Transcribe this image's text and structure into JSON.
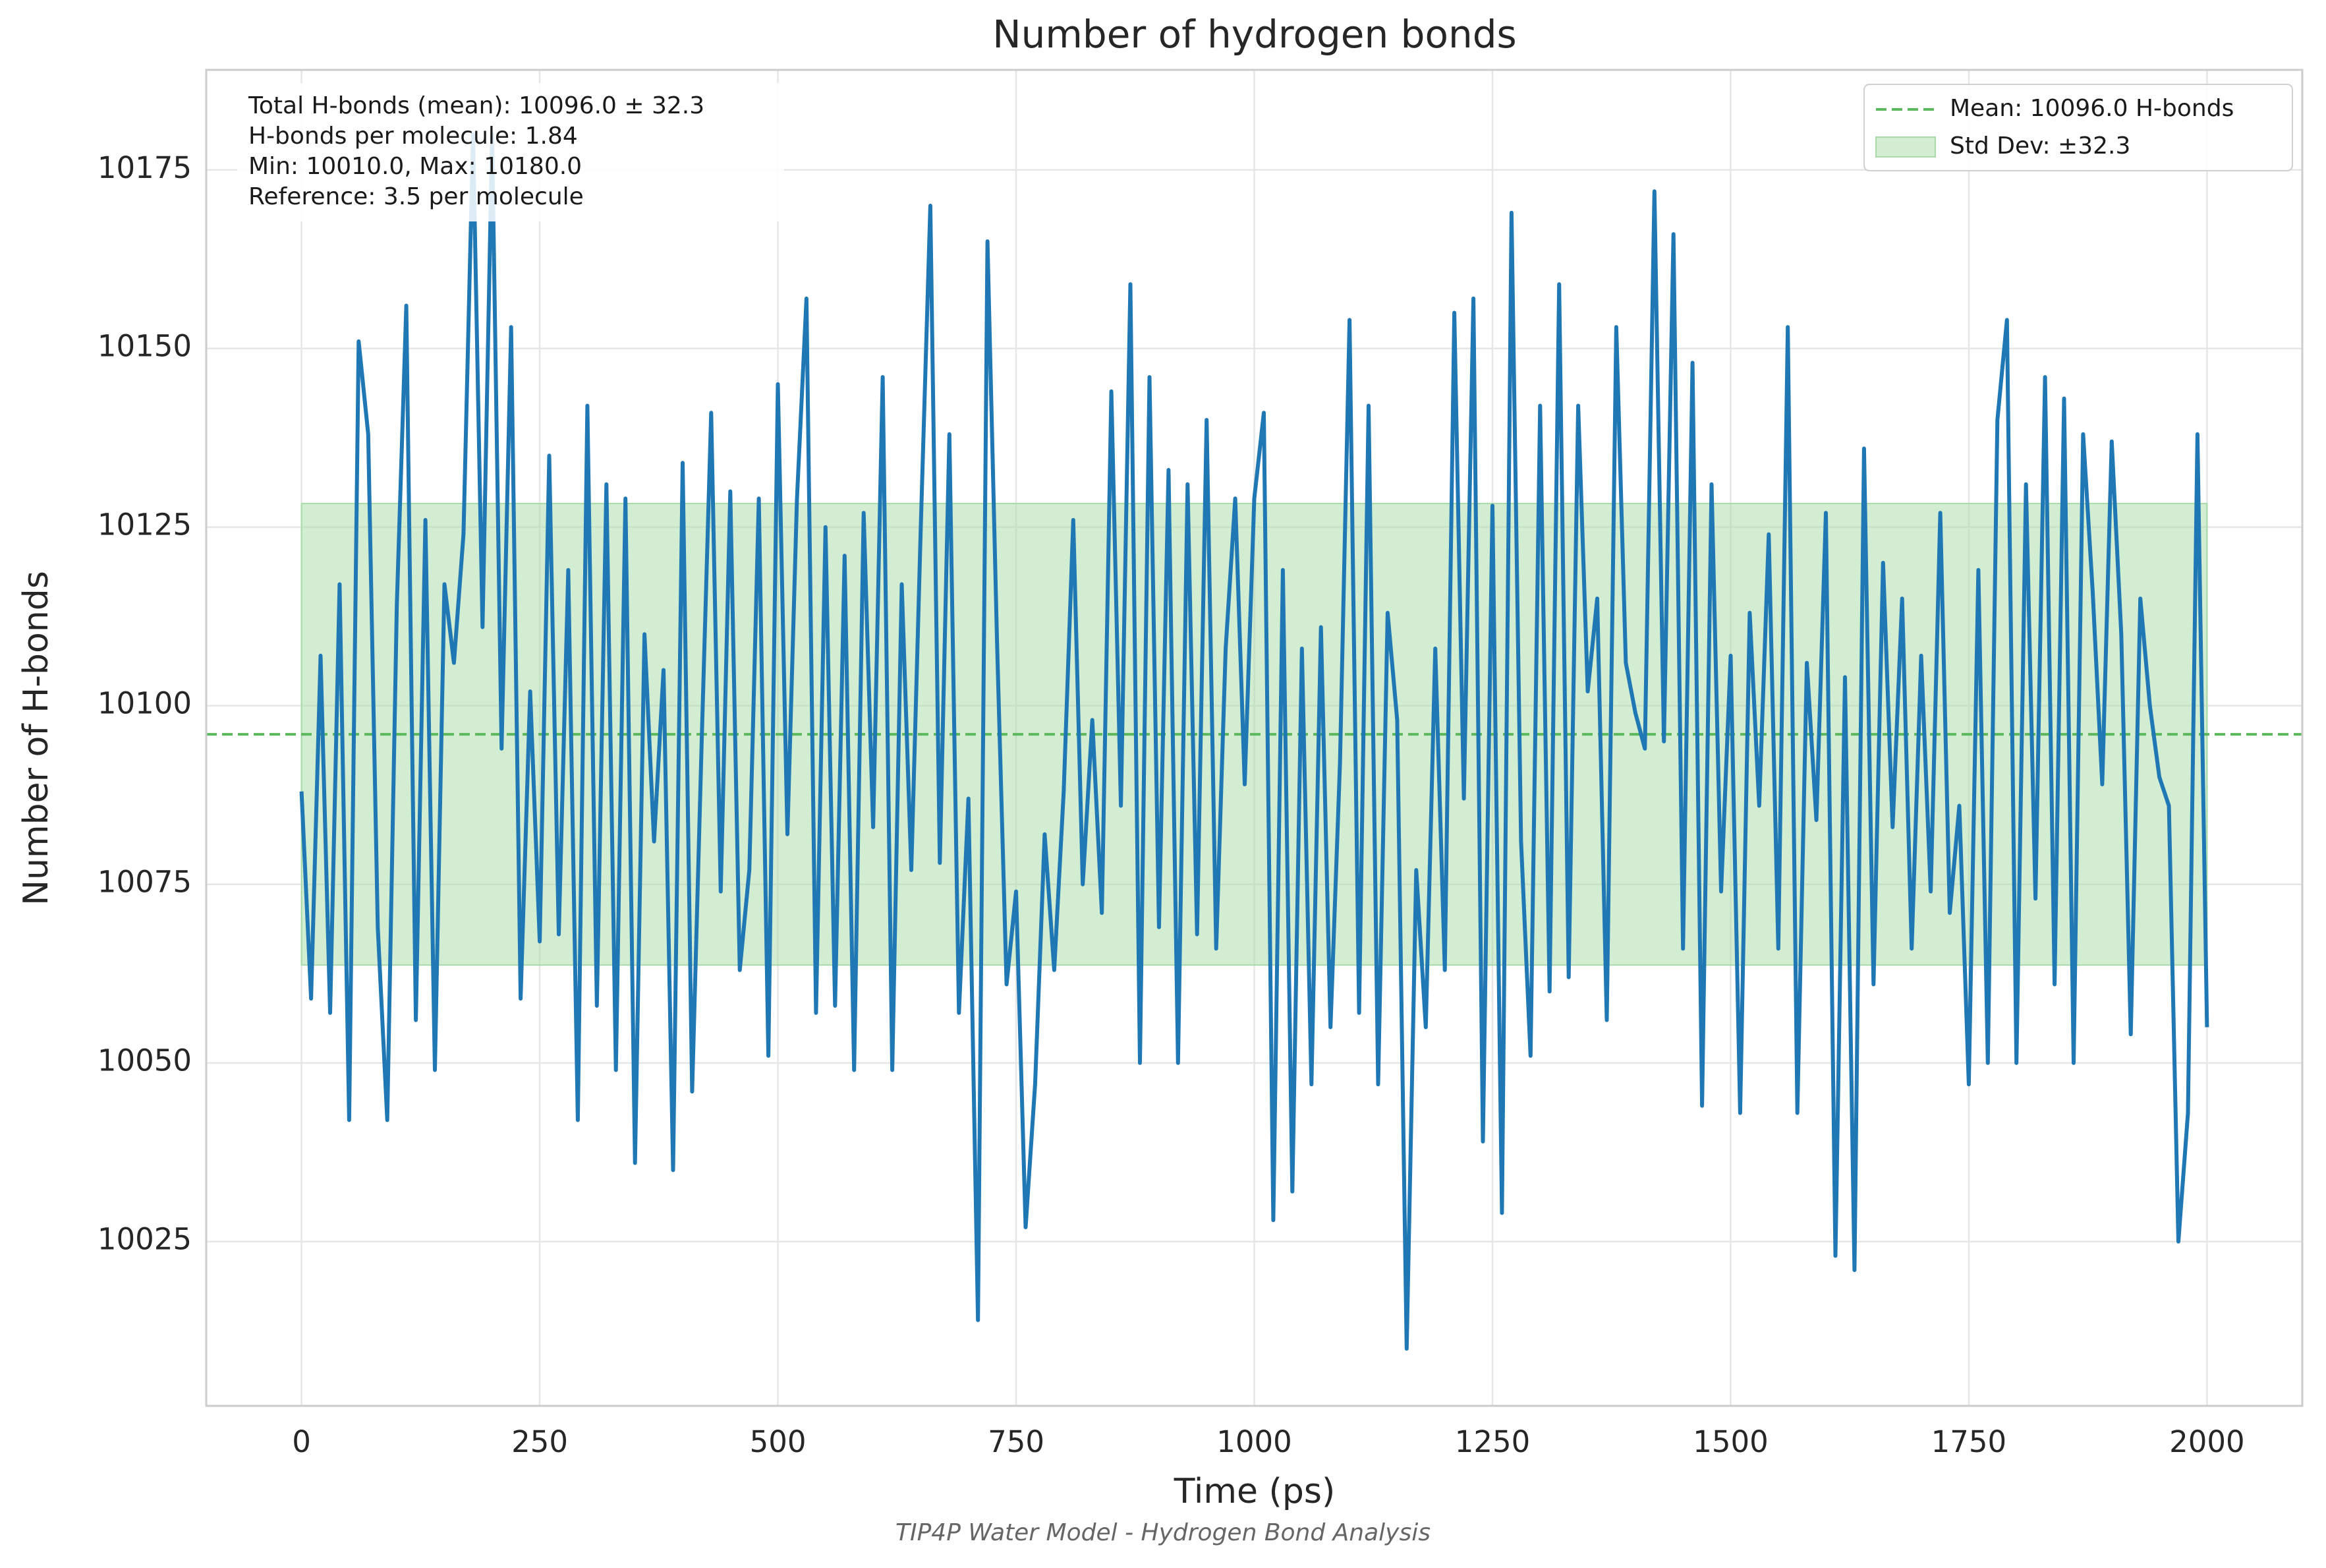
{
  "chart_data": {
    "type": "line",
    "title": "Number of hydrogen bonds",
    "xlabel": "Time (ps)",
    "ylabel": "Number of H-bonds",
    "caption": "TIP4P Water Model - Hydrogen Bond Analysis",
    "annotations": [
      "Total H-bonds (mean): 10096.0 ± 32.3",
      "H-bonds per molecule: 1.84",
      "Min: 10010.0, Max: 10180.0",
      "Reference: 3.5 per molecule"
    ],
    "xlim": [
      -100,
      2100
    ],
    "ylim": [
      10002,
      10189
    ],
    "xticks": [
      0,
      250,
      500,
      750,
      1000,
      1250,
      1500,
      1750,
      2000
    ],
    "yticks": [
      10025,
      10050,
      10075,
      10100,
      10125,
      10150,
      10175
    ],
    "grid": true,
    "legend": "upper right",
    "x": [
      0,
      10,
      20,
      30,
      40,
      50,
      60,
      70,
      80,
      90,
      100,
      110,
      120,
      130,
      140,
      150,
      160,
      170,
      180,
      190,
      200,
      210,
      220,
      230,
      240,
      250,
      260,
      270,
      280,
      290,
      300,
      310,
      320,
      330,
      340,
      350,
      360,
      370,
      380,
      390,
      400,
      410,
      420,
      430,
      440,
      450,
      460,
      470,
      480,
      490,
      500,
      510,
      520,
      530,
      540,
      550,
      560,
      570,
      580,
      590,
      600,
      610,
      620,
      630,
      640,
      650,
      660,
      670,
      680,
      690,
      700,
      710,
      720,
      730,
      740,
      750,
      760,
      770,
      780,
      790,
      800,
      810,
      820,
      830,
      840,
      850,
      860,
      870,
      880,
      890,
      900,
      910,
      920,
      930,
      940,
      950,
      960,
      970,
      980,
      990,
      1000,
      1010,
      1020,
      1030,
      1040,
      1050,
      1060,
      1070,
      1080,
      1090,
      1100,
      1110,
      1120,
      1130,
      1140,
      1150,
      1160,
      1170,
      1180,
      1190,
      1200,
      1210,
      1220,
      1230,
      1240,
      1250,
      1260,
      1270,
      1280,
      1290,
      1300,
      1310,
      1320,
      1330,
      1340,
      1350,
      1360,
      1370,
      1380,
      1390,
      1400,
      1410,
      1420,
      1430,
      1440,
      1450,
      1460,
      1470,
      1480,
      1490,
      1500,
      1510,
      1520,
      1530,
      1540,
      1550,
      1560,
      1570,
      1580,
      1590,
      1600,
      1610,
      1620,
      1630,
      1640,
      1650,
      1660,
      1670,
      1680,
      1690,
      1700,
      1710,
      1720,
      1730,
      1740,
      1750,
      1760,
      1770,
      1780,
      1790,
      1800,
      1810,
      1820,
      1830,
      1840,
      1850,
      1860,
      1870,
      1880,
      1890,
      1900,
      1910,
      1920,
      1930,
      1940,
      1950,
      1960,
      1970,
      1980,
      1990,
      2000
    ],
    "series": [
      {
        "color": "#1f77b4",
        "values": [
          10088,
          10059,
          10107,
          10057,
          10117,
          10042,
          10151,
          10138,
          10069,
          10042,
          10114,
          10156,
          10056,
          10126,
          10049,
          10117,
          10106,
          10124,
          10180,
          10111,
          10180,
          10094,
          10153,
          10059,
          10102,
          10067,
          10135,
          10068,
          10119,
          10042,
          10142,
          10058,
          10131,
          10049,
          10129,
          10036,
          10110,
          10081,
          10105,
          10035,
          10134,
          10046,
          10095,
          10141,
          10074,
          10130,
          10063,
          10077,
          10129,
          10051,
          10145,
          10082,
          10129,
          10157,
          10057,
          10125,
          10058,
          10121,
          10049,
          10127,
          10083,
          10146,
          10049,
          10117,
          10077,
          10125,
          10170,
          10078,
          10138,
          10057,
          10087,
          10014,
          10165,
          10109,
          10061,
          10074,
          10027,
          10047,
          10082,
          10063,
          10088,
          10126,
          10075,
          10098,
          10071,
          10144,
          10086,
          10159,
          10050,
          10146,
          10069,
          10133,
          10050,
          10131,
          10068,
          10140,
          10066,
          10108,
          10129,
          10089,
          10129,
          10141,
          10028,
          10119,
          10032,
          10108,
          10047,
          10111,
          10055,
          10092,
          10154,
          10057,
          10142,
          10047,
          10113,
          10098,
          10010,
          10077,
          10055,
          10108,
          10063,
          10155,
          10087,
          10157,
          10039,
          10128,
          10029,
          10169,
          10081,
          10051,
          10142,
          10060,
          10159,
          10062,
          10142,
          10102,
          10115,
          10056,
          10153,
          10106,
          10099,
          10094,
          10172,
          10095,
          10166,
          10066,
          10148,
          10044,
          10131,
          10074,
          10107,
          10043,
          10113,
          10086,
          10124,
          10066,
          10153,
          10043,
          10106,
          10084,
          10127,
          10023,
          10104,
          10021,
          10136,
          10061,
          10120,
          10083,
          10115,
          10066,
          10107,
          10074,
          10127,
          10071,
          10086,
          10047,
          10119,
          10050,
          10140,
          10154,
          10050,
          10131,
          10073,
          10146,
          10061,
          10143,
          10050,
          10138,
          10116,
          10089,
          10137,
          10110,
          10054,
          10115,
          10100,
          10090,
          10086,
          10025,
          10043,
          10138,
          10055
        ]
      }
    ],
    "mean_line": {
      "value": 10096.0,
      "label": "Mean: 10096.0 H-bonds",
      "color": "#5cb85c"
    },
    "std_band": {
      "low": 10063.7,
      "high": 10128.3,
      "label": "Std Dev: ±32.3",
      "color": "#a8dba8"
    }
  }
}
